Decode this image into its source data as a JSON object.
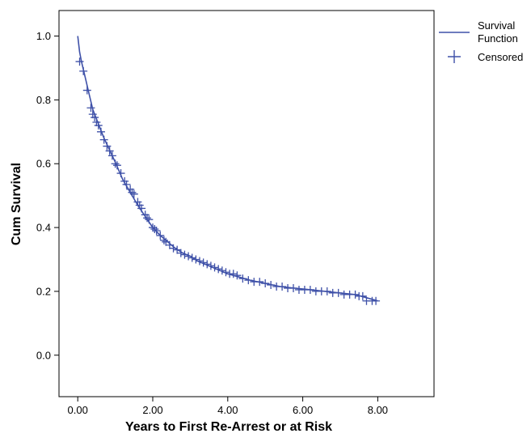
{
  "colors": {
    "series": "#3f51a8",
    "axis": "#000000",
    "background": "#ffffff"
  },
  "chart_data": {
    "type": "line",
    "title": "",
    "xlabel": "Years to First Re-Arrest or at Risk",
    "ylabel": "Cum Survival",
    "xlim": [
      -0.5,
      9.5
    ],
    "ylim": [
      -0.13,
      1.08
    ],
    "x_ticks": [
      "0.00",
      "2.00",
      "4.00",
      "6.00",
      "8.00"
    ],
    "y_ticks": [
      "0.0",
      "0.2",
      "0.4",
      "0.6",
      "0.8",
      "1.0"
    ],
    "grid": false,
    "legend": {
      "position": "top-right",
      "entries": [
        {
          "label_lines": [
            "Survival",
            "Function"
          ],
          "marker": "line"
        },
        {
          "label_lines": [
            "Censored"
          ],
          "marker": "plus"
        }
      ]
    },
    "series": [
      {
        "name": "Survival Function",
        "x": [
          0.0,
          0.05,
          0.1,
          0.2,
          0.3,
          0.4,
          0.5,
          0.6,
          0.7,
          0.8,
          1.0,
          1.2,
          1.4,
          1.6,
          1.8,
          2.0,
          2.2,
          2.4,
          2.6,
          2.8,
          3.0,
          3.2,
          3.5,
          3.8,
          4.0,
          4.3,
          4.6,
          5.0,
          5.4,
          5.8,
          6.2,
          6.6,
          7.0,
          7.4,
          7.7,
          8.0
        ],
        "y": [
          1.0,
          0.95,
          0.92,
          0.87,
          0.82,
          0.77,
          0.74,
          0.71,
          0.68,
          0.655,
          0.605,
          0.55,
          0.51,
          0.47,
          0.435,
          0.4,
          0.375,
          0.355,
          0.335,
          0.32,
          0.31,
          0.295,
          0.28,
          0.265,
          0.255,
          0.245,
          0.235,
          0.225,
          0.215,
          0.21,
          0.205,
          0.2,
          0.195,
          0.19,
          0.18,
          0.17
        ]
      },
      {
        "name": "Censored",
        "x": [
          0.05,
          0.15,
          0.25,
          0.35,
          0.4,
          0.45,
          0.5,
          0.55,
          0.62,
          0.7,
          0.78,
          0.85,
          0.92,
          1.0,
          1.05,
          1.15,
          1.25,
          1.3,
          1.4,
          1.45,
          1.5,
          1.6,
          1.65,
          1.7,
          1.8,
          1.85,
          1.9,
          2.0,
          2.05,
          2.1,
          2.2,
          2.3,
          2.35,
          2.45,
          2.55,
          2.65,
          2.75,
          2.85,
          2.95,
          3.05,
          3.15,
          3.25,
          3.35,
          3.45,
          3.55,
          3.65,
          3.75,
          3.85,
          3.95,
          4.05,
          4.15,
          4.25,
          4.4,
          4.55,
          4.7,
          4.85,
          5.0,
          5.15,
          5.3,
          5.45,
          5.6,
          5.75,
          5.9,
          6.05,
          6.2,
          6.35,
          6.5,
          6.65,
          6.8,
          6.95,
          7.1,
          7.25,
          7.4,
          7.5,
          7.6,
          7.7,
          7.85,
          7.95
        ],
        "y": [
          0.92,
          0.89,
          0.83,
          0.775,
          0.755,
          0.745,
          0.73,
          0.72,
          0.7,
          0.675,
          0.655,
          0.64,
          0.625,
          0.6,
          0.595,
          0.57,
          0.545,
          0.535,
          0.52,
          0.51,
          0.505,
          0.48,
          0.47,
          0.46,
          0.44,
          0.43,
          0.425,
          0.4,
          0.395,
          0.39,
          0.375,
          0.36,
          0.355,
          0.345,
          0.335,
          0.33,
          0.32,
          0.315,
          0.31,
          0.305,
          0.3,
          0.295,
          0.29,
          0.285,
          0.28,
          0.275,
          0.27,
          0.265,
          0.26,
          0.255,
          0.255,
          0.25,
          0.24,
          0.235,
          0.23,
          0.23,
          0.225,
          0.22,
          0.215,
          0.215,
          0.21,
          0.21,
          0.205,
          0.205,
          0.205,
          0.2,
          0.2,
          0.2,
          0.195,
          0.195,
          0.19,
          0.19,
          0.19,
          0.185,
          0.185,
          0.17,
          0.17,
          0.17
        ]
      }
    ]
  }
}
